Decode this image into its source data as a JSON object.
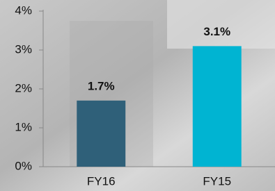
{
  "chart_data": {
    "type": "bar",
    "categories": [
      "FY16",
      "FY15"
    ],
    "values": [
      1.7,
      3.1
    ],
    "value_labels": [
      "1.7%",
      "3.1%"
    ],
    "colors": [
      "#2f6079",
      "#00b4d2"
    ],
    "ylim": [
      0,
      4
    ],
    "yticks": [
      {
        "value": 0,
        "label": "0%"
      },
      {
        "value": 1,
        "label": "1%"
      },
      {
        "value": 2,
        "label": "2%"
      },
      {
        "value": 3,
        "label": "3%"
      },
      {
        "value": 4,
        "label": "4%"
      }
    ]
  }
}
